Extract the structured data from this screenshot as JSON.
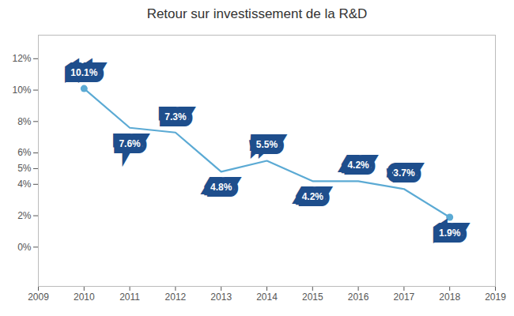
{
  "chart_data": {
    "type": "line",
    "title": "Retour sur investissement de la R&D",
    "x": [
      2010,
      2011,
      2012,
      2013,
      2014,
      2015,
      2016,
      2017,
      2018
    ],
    "values": [
      10.1,
      7.6,
      7.3,
      4.8,
      5.5,
      4.2,
      4.2,
      3.7,
      1.9
    ],
    "value_labels": [
      "10.1%",
      "7.6%",
      "7.3%",
      "4.8%",
      "5.5%",
      "4.2%",
      "4.2%",
      "3.7%",
      "1.9%"
    ],
    "data_labels": true,
    "color": "#5baad4",
    "xlim": [
      2009,
      2019
    ],
    "xticks": [
      2009,
      2010,
      2011,
      2012,
      2013,
      2014,
      2015,
      2016,
      2017,
      2018,
      2019
    ],
    "ylim": [
      -2.5,
      13.5
    ],
    "yticks": [
      {
        "value": 0,
        "label": "0%"
      },
      {
        "value": 2,
        "label": "2%"
      },
      {
        "value": 4,
        "label": "4%"
      },
      {
        "value": 5,
        "label": "5%"
      },
      {
        "value": 6,
        "label": "6%"
      },
      {
        "value": 8,
        "label": "8%"
      },
      {
        "value": 10,
        "label": "10%"
      },
      {
        "value": 12,
        "label": "12%"
      }
    ],
    "grid": false
  }
}
